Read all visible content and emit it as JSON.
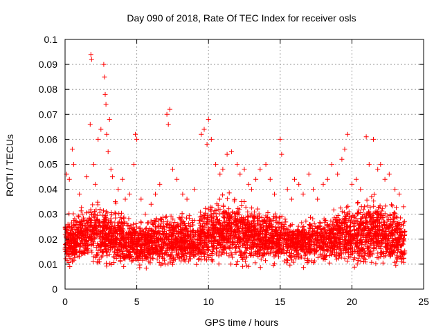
{
  "chart_data": {
    "type": "scatter",
    "title": "Day 090 of 2018, Rate Of TEC Index for receiver osls",
    "xlabel": "GPS time / hours",
    "ylabel": "ROTI / TECUs",
    "xlim": [
      0,
      25
    ],
    "ylim": [
      0,
      0.1
    ],
    "x_ticks": [
      "0",
      "5",
      "10",
      "15",
      "20",
      "25"
    ],
    "y_ticks": [
      "0",
      "0.01",
      "0.02",
      "0.03",
      "0.04",
      "0.05",
      "0.06",
      "0.07",
      "0.08",
      "0.09",
      "0.1"
    ],
    "grid": true,
    "marker": "plus",
    "color": "#ff0000",
    "series": [
      {
        "x": [
          0.1,
          0.3,
          0.5,
          0.6,
          1.0,
          1.2,
          1.5,
          1.75,
          1.8,
          1.85,
          2.0,
          2.1,
          2.3,
          2.5,
          2.7,
          2.75,
          2.8,
          2.85,
          2.9,
          3.0,
          3.1,
          3.2,
          3.3,
          3.5,
          3.7,
          4.0,
          4.2,
          4.5,
          4.8,
          4.9,
          5.0,
          5.3,
          5.6,
          6.0,
          6.3,
          6.6,
          7.1,
          7.2,
          7.3,
          7.5,
          7.8,
          8.2,
          8.5,
          9.0,
          9.5,
          9.7,
          9.9,
          10.0,
          10.2,
          10.5,
          10.8,
          11.0,
          11.3,
          11.6,
          12.0,
          12.2,
          12.5,
          12.8,
          13.0,
          13.3,
          13.6,
          14.0,
          14.3,
          14.6,
          15.0,
          15.1,
          15.5,
          15.8,
          16.0,
          16.3,
          16.6,
          17.0,
          17.3,
          17.6,
          18.0,
          18.3,
          18.6,
          19.0,
          19.3,
          19.5,
          19.7,
          20.0,
          20.3,
          20.6,
          21.0,
          21.2,
          21.5,
          21.8,
          22.0,
          22.3,
          22.6,
          23.0,
          23.3,
          23.6
        ],
        "y": [
          0.046,
          0.044,
          0.056,
          0.05,
          0.038,
          0.03,
          0.045,
          0.066,
          0.094,
          0.092,
          0.05,
          0.042,
          0.06,
          0.064,
          0.09,
          0.085,
          0.078,
          0.074,
          0.062,
          0.055,
          0.068,
          0.048,
          0.045,
          0.035,
          0.04,
          0.044,
          0.036,
          0.038,
          0.05,
          0.062,
          0.06,
          0.036,
          0.03,
          0.034,
          0.038,
          0.042,
          0.07,
          0.066,
          0.072,
          0.048,
          0.044,
          0.038,
          0.036,
          0.04,
          0.062,
          0.064,
          0.058,
          0.068,
          0.06,
          0.05,
          0.046,
          0.048,
          0.054,
          0.055,
          0.05,
          0.046,
          0.048,
          0.042,
          0.04,
          0.044,
          0.048,
          0.05,
          0.044,
          0.038,
          0.06,
          0.054,
          0.04,
          0.036,
          0.044,
          0.042,
          0.038,
          0.046,
          0.04,
          0.036,
          0.042,
          0.044,
          0.05,
          0.046,
          0.052,
          0.056,
          0.062,
          0.042,
          0.044,
          0.04,
          0.061,
          0.05,
          0.06,
          0.048,
          0.05,
          0.044,
          0.046,
          0.04,
          0.038,
          0.033
        ],
        "band": {
          "x": [
            0,
            1,
            2,
            3,
            4,
            5,
            6,
            7,
            8,
            9,
            10,
            11,
            12,
            13,
            14,
            15,
            16,
            17,
            18,
            19,
            20,
            21,
            22,
            23,
            23.7
          ],
          "low": [
            0.007,
            0.007,
            0.007,
            0.006,
            0.005,
            0.006,
            0.006,
            0.006,
            0.006,
            0.006,
            0.007,
            0.007,
            0.007,
            0.007,
            0.008,
            0.008,
            0.008,
            0.008,
            0.008,
            0.008,
            0.007,
            0.006,
            0.006,
            0.005,
            0.005
          ],
          "high": [
            0.031,
            0.034,
            0.038,
            0.036,
            0.034,
            0.03,
            0.03,
            0.034,
            0.032,
            0.032,
            0.038,
            0.04,
            0.038,
            0.036,
            0.034,
            0.032,
            0.03,
            0.03,
            0.032,
            0.036,
            0.036,
            0.04,
            0.04,
            0.036,
            0.032
          ],
          "points_per_hour": 170,
          "x_max": 23.7
        }
      }
    ]
  }
}
